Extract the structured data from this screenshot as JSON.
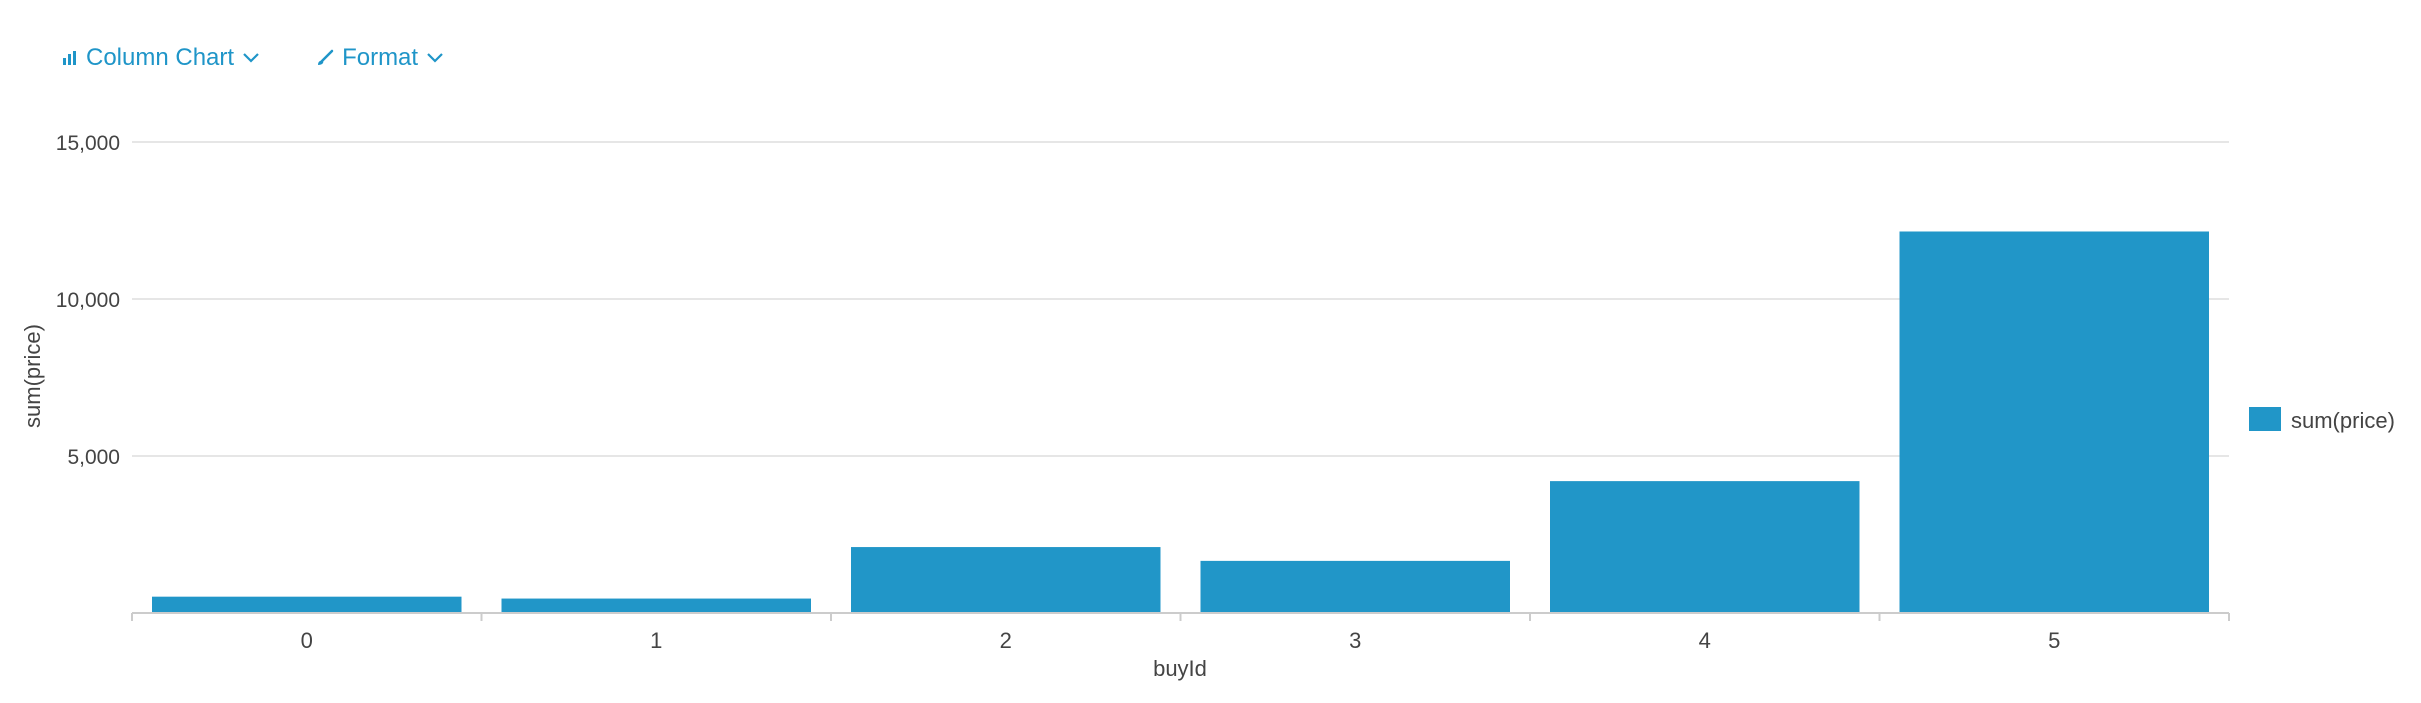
{
  "toolbar": {
    "chart_type_label": "Column Chart",
    "format_label": "Format",
    "chart_type_icon": "bar-chart-icon",
    "format_icon": "brush-icon",
    "dropdown_icon": "chevron-down-icon"
  },
  "colors": {
    "accent": "#1f95c8",
    "bar": "#2196c8",
    "grid": "#e6e6e6",
    "axis_text": "#444444"
  },
  "chart_data": {
    "type": "bar",
    "categories": [
      "0",
      "1",
      "2",
      "3",
      "4",
      "5"
    ],
    "series": [
      {
        "name": "sum(price)",
        "values": [
          520,
          460,
          2100,
          1660,
          4200,
          12150
        ]
      }
    ],
    "xlabel": "buyId",
    "ylabel": "sum(price)",
    "ylim": [
      0,
      15000
    ],
    "yticks": [
      5000,
      10000,
      15000
    ],
    "ytick_labels": [
      "5,000",
      "10,000",
      "15,000"
    ],
    "grid": true,
    "legend_position": "right"
  }
}
